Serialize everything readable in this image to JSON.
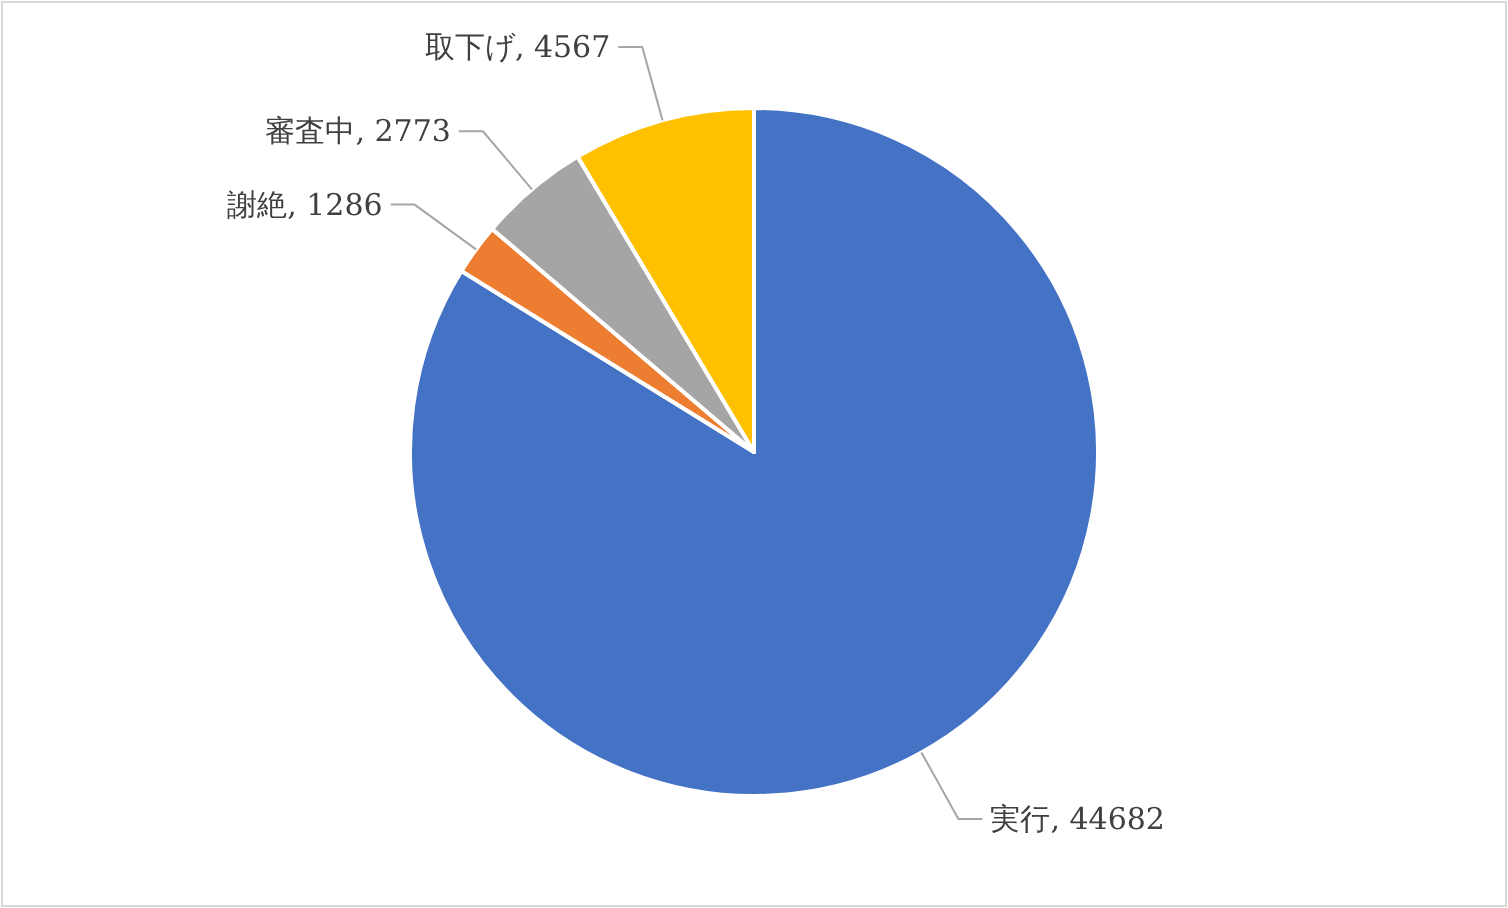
{
  "chart_data": {
    "type": "pie",
    "categories": [
      "実行",
      "謝絶",
      "審査中",
      "取下げ"
    ],
    "values": [
      44682,
      1286,
      2773,
      4567
    ],
    "value_labels": [
      ", 44682",
      ", 1286",
      ", 2773",
      ", 4567"
    ],
    "colors": [
      "#4472c4",
      "#ed7d31",
      "#a5a5a5",
      "#ffc000"
    ],
    "legend": false
  }
}
